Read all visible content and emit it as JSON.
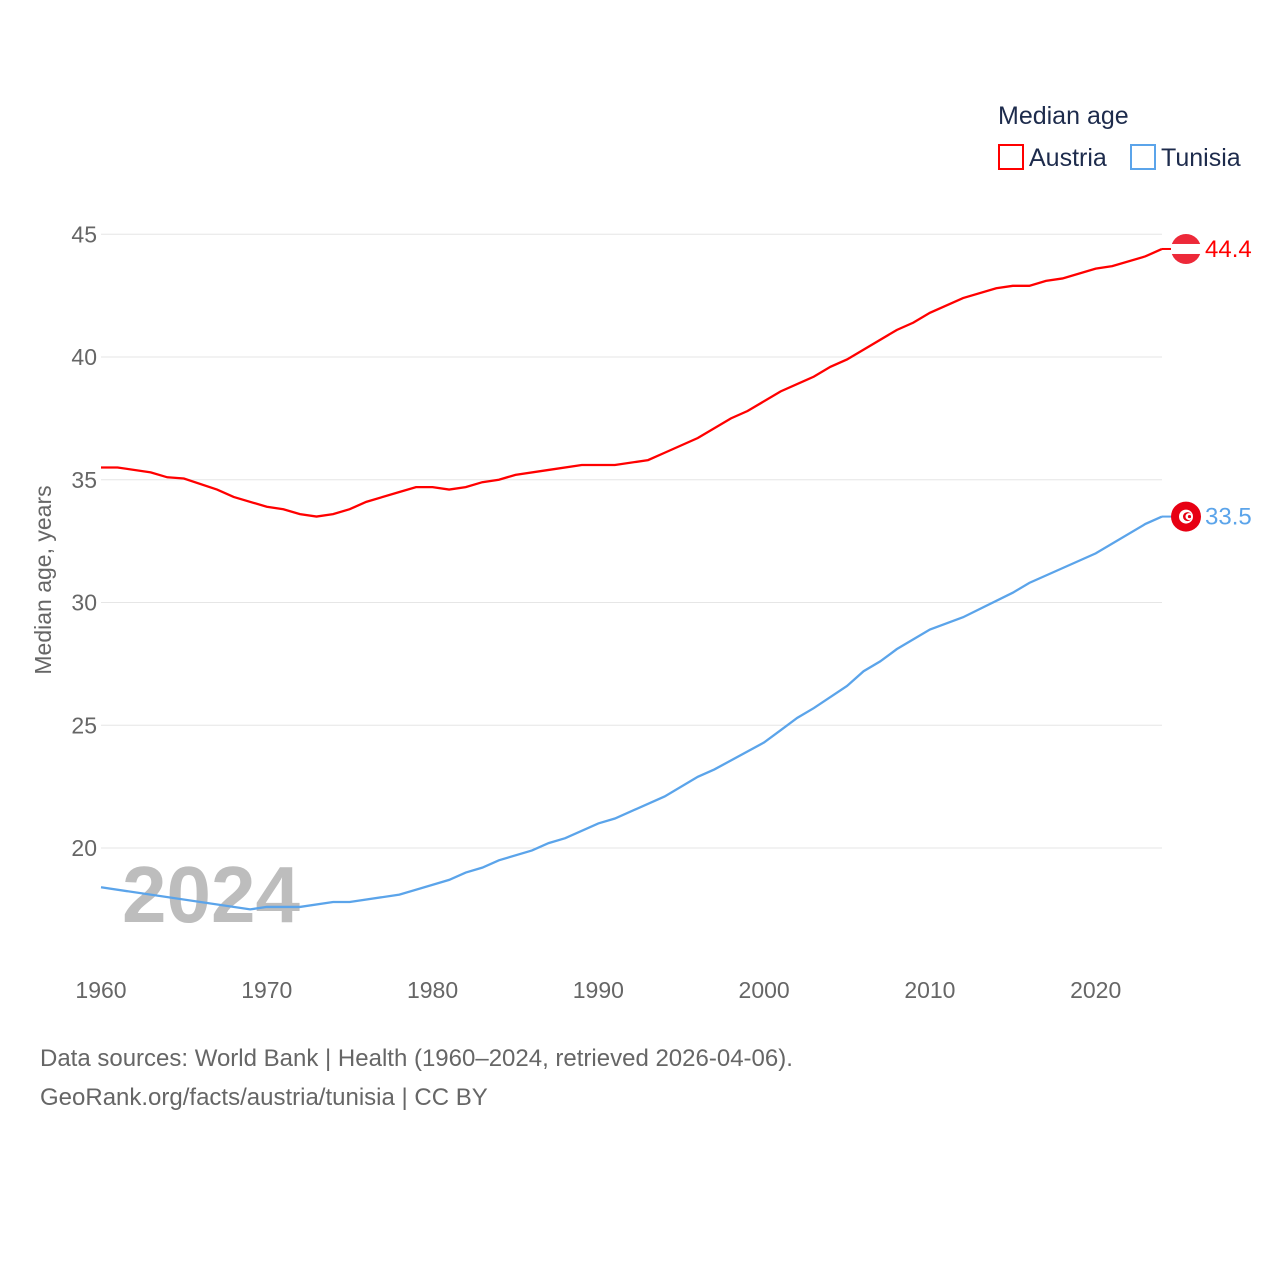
{
  "chart_data": {
    "type": "line",
    "title": "",
    "legend_title": "Median age",
    "legend_position": "top-right",
    "xlabel": "",
    "ylabel": "Median age, years",
    "xlim": [
      1960,
      2024
    ],
    "ylim": [
      16,
      46
    ],
    "grid": true,
    "x_ticks": [
      "1960",
      "1970",
      "1980",
      "1990",
      "2000",
      "2010",
      "2020"
    ],
    "y_ticks": [
      "20",
      "25",
      "30",
      "35",
      "40",
      "45"
    ],
    "watermark_year": "2024",
    "series": [
      {
        "name": "Austria",
        "color": "#ff0000",
        "end_label": "44.4",
        "x": [
          1960,
          1961,
          1963,
          1964,
          1965,
          1967,
          1968,
          1970,
          1971,
          1972,
          1973,
          1974,
          1975,
          1976,
          1978,
          1979,
          1980,
          1981,
          1982,
          1983,
          1984,
          1985,
          1987,
          1989,
          1991,
          1993,
          1994,
          1996,
          1998,
          1999,
          2001,
          2003,
          2004,
          2005,
          2008,
          2009,
          2010,
          2012,
          2014,
          2015,
          2016,
          2017,
          2018,
          2020,
          2021,
          2023,
          2024
        ],
        "y": [
          35.5,
          35.5,
          35.3,
          35.1,
          35.05,
          34.6,
          34.3,
          33.9,
          33.8,
          33.6,
          33.5,
          33.6,
          33.8,
          34.1,
          34.5,
          34.7,
          34.7,
          34.6,
          34.7,
          34.9,
          35.0,
          35.2,
          35.4,
          35.6,
          35.6,
          35.8,
          36.1,
          36.7,
          37.5,
          37.8,
          38.6,
          39.2,
          39.6,
          39.9,
          41.1,
          41.4,
          41.8,
          42.4,
          42.8,
          42.9,
          42.9,
          43.1,
          43.2,
          43.6,
          43.7,
          44.1,
          44.4
        ]
      },
      {
        "name": "Tunisia",
        "color": "#5ba4ea",
        "end_label": "33.5",
        "x": [
          1960,
          1969,
          1970,
          1972,
          1974,
          1975,
          1978,
          1981,
          1982,
          1983,
          1984,
          1986,
          1987,
          1988,
          1990,
          1991,
          1994,
          1996,
          1997,
          2000,
          2001,
          2002,
          2003,
          2005,
          2006,
          2007,
          2008,
          2010,
          2012,
          2015,
          2016,
          2018,
          2020,
          2023,
          2024
        ],
        "y": [
          18.4,
          17.5,
          17.6,
          17.6,
          17.8,
          17.8,
          18.1,
          18.7,
          19.0,
          19.2,
          19.5,
          19.9,
          20.2,
          20.4,
          21.0,
          21.2,
          22.1,
          22.9,
          23.2,
          24.3,
          24.8,
          25.3,
          25.7,
          26.6,
          27.2,
          27.6,
          28.1,
          28.9,
          29.4,
          30.4,
          30.8,
          31.4,
          32.0,
          33.2,
          33.5
        ]
      }
    ]
  },
  "footer": {
    "line1": "Data sources: World Bank | Health (1960–2024, retrieved 2026-04-06).",
    "line2": "GeoRank.org/facts/austria/tunisia | CC BY"
  }
}
